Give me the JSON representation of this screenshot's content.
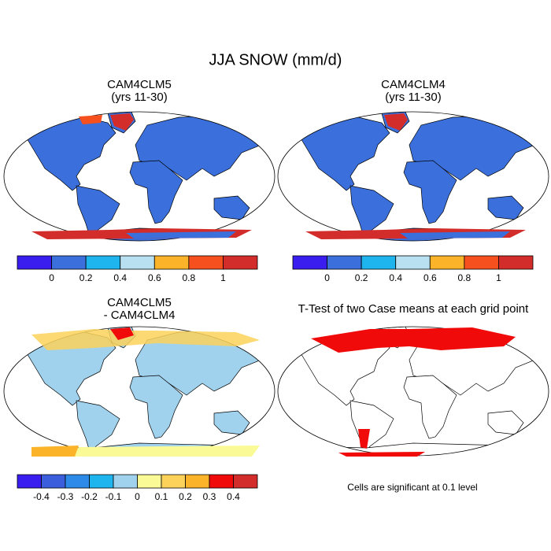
{
  "title": "JJA SNOW (mm/d)",
  "panels": [
    {
      "title": "CAM4CLM5",
      "subtitle": "(yrs 11-30)"
    },
    {
      "title": "CAM4CLM4",
      "subtitle": "(yrs 11-30)"
    },
    {
      "title": "CAM4CLM5",
      "subtitle": "- CAM4CLM4"
    },
    {
      "title": "T-Test of two Case means at each grid point"
    }
  ],
  "colorbars": [
    {
      "colors": [
        "#3a1ef0",
        "#3b6fdc",
        "#1eb4ee",
        "#b8e0f0",
        "#fbb42a",
        "#f5501e",
        "#d22d2a"
      ],
      "labels": [
        0,
        0.2,
        0.4,
        0.6,
        0.8,
        1
      ]
    },
    {
      "colors": [
        "#3a1ef0",
        "#3b6fdc",
        "#1eb4ee",
        "#b8e0f0",
        "#fbb42a",
        "#f5501e",
        "#d22d2a"
      ],
      "labels": [
        0,
        0.2,
        0.4,
        0.6,
        0.8,
        1
      ]
    },
    {
      "colors": [
        "#3a1ef0",
        "#3b5fdc",
        "#2d8ae8",
        "#1eb4ee",
        "#a0d2ee",
        "#fafa96",
        "#fcd25a",
        "#fbb42a",
        "#f00a0a",
        "#d22d2a"
      ],
      "labels": [
        -0.4,
        -0.3,
        -0.2,
        -0.1,
        0,
        0.1,
        0.2,
        0.3,
        0.4
      ]
    }
  ],
  "note": "Cells are significant at 0.1 level"
}
